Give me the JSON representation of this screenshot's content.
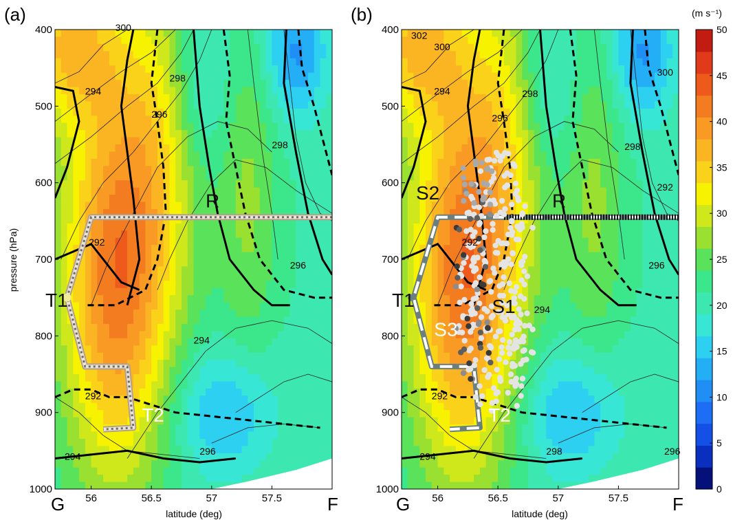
{
  "chart_data": {
    "type": "contour",
    "colorbar": {
      "unit": "(m s⁻¹)",
      "min": 0,
      "max": 50,
      "step": 2.5,
      "ticks": [
        "0",
        "5",
        "10",
        "15",
        "20",
        "25",
        "30",
        "35",
        "40",
        "45",
        "50"
      ],
      "colors": [
        "#06107a",
        "#0a2fbf",
        "#1450e6",
        "#1e6ef5",
        "#1f8ef5",
        "#24aef5",
        "#2dd0f0",
        "#38e6d6",
        "#3ce8b0",
        "#3ce68a",
        "#5ae25a",
        "#9ae030",
        "#cfe81c",
        "#f6f200",
        "#fbd21a",
        "#fbb422",
        "#f99a24",
        "#f47c20",
        "#ee5a1c",
        "#e03a1a",
        "#c21c12"
      ]
    },
    "panels": [
      {
        "label": "(a)",
        "xlabel": "latitude (deg)",
        "ylabel": "pressure (hPa)",
        "xlim": [
          55.7,
          58.0
        ],
        "ylim": [
          1000,
          400
        ],
        "xticks": [
          "56",
          "56.5",
          "57",
          "57.5"
        ],
        "yticks": [
          "400",
          "500",
          "600",
          "700",
          "800",
          "900",
          "1000"
        ],
        "end_left": "G",
        "end_right": "F",
        "theta_labels": [
          "300",
          "294",
          "296",
          "298",
          "298",
          "292",
          "296",
          "292",
          "294",
          "294",
          "296"
        ],
        "region_labels": [
          "R",
          "T1",
          "T2"
        ],
        "trajectory_style": "colored"
      },
      {
        "label": "(b)",
        "xlabel": "latitude (deg)",
        "ylabel": "",
        "xlim": [
          55.7,
          58.0
        ],
        "ylim": [
          1000,
          400
        ],
        "xticks": [
          "56",
          "56.5",
          "57",
          "57.5"
        ],
        "yticks": [
          "400",
          "500",
          "600",
          "700",
          "800",
          "900",
          "1000"
        ],
        "end_left": "G",
        "end_right": "F",
        "theta_labels": [
          "302",
          "300",
          "300",
          "294",
          "296",
          "298",
          "298",
          "292",
          "296",
          "292",
          "294",
          "294",
          "296",
          "298",
          "292"
        ],
        "region_labels": [
          "S2",
          "R",
          "T1",
          "S1",
          "S3",
          "T2"
        ],
        "trajectory_style": "gray"
      }
    ]
  }
}
